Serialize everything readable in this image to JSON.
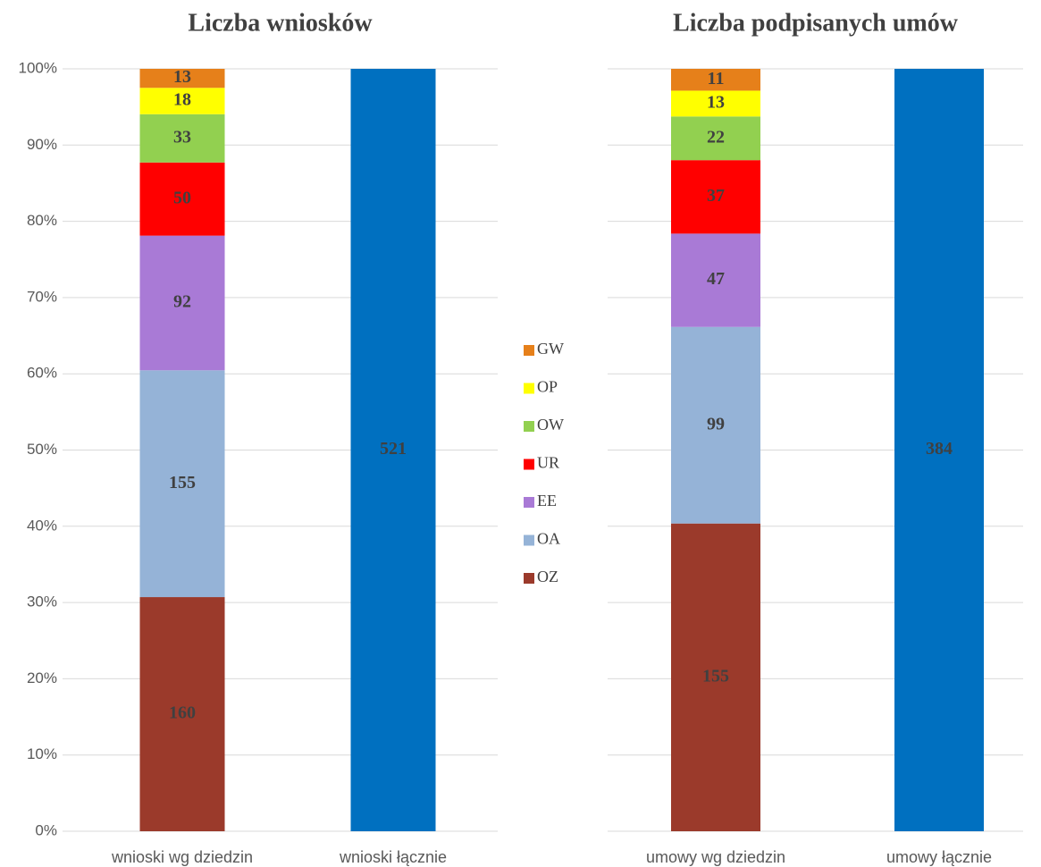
{
  "chart_data": [
    {
      "type": "bar",
      "stacking": "percent",
      "title": "Liczba wniosków",
      "categories": [
        "wnioski wg dziedzin",
        "wnioski łącznie"
      ],
      "series": [
        {
          "name": "OZ",
          "color": "#9b3a2b",
          "values": [
            160,
            null
          ]
        },
        {
          "name": "OA",
          "color": "#95b3d7",
          "values": [
            155,
            null
          ]
        },
        {
          "name": "EE",
          "color": "#a97ad6",
          "values": [
            92,
            null
          ]
        },
        {
          "name": "UR",
          "color": "#ff0000",
          "values": [
            50,
            null
          ]
        },
        {
          "name": "OW",
          "color": "#92d050",
          "values": [
            33,
            null
          ]
        },
        {
          "name": "OP",
          "color": "#ffff00",
          "values": [
            18,
            null
          ]
        },
        {
          "name": "GW",
          "color": "#e6801a",
          "values": [
            13,
            null
          ]
        },
        {
          "color": "#0070c0",
          "values": [
            null,
            521
          ]
        }
      ],
      "ylim": [
        0,
        100
      ],
      "yticks": [
        {
          "value": 0,
          "label": "0%"
        },
        {
          "value": 10,
          "label": "10%"
        },
        {
          "value": 20,
          "label": "20%"
        },
        {
          "value": 30,
          "label": "30%"
        },
        {
          "value": 40,
          "label": "40%"
        },
        {
          "value": 50,
          "label": "50%"
        },
        {
          "value": 60,
          "label": "60%"
        },
        {
          "value": 70,
          "label": "70%"
        },
        {
          "value": 80,
          "label": "80%"
        },
        {
          "value": 90,
          "label": "90%"
        },
        {
          "value": 100,
          "label": "100%"
        }
      ],
      "grid": true,
      "legend": "right"
    },
    {
      "type": "bar",
      "stacking": "percent",
      "title": "Liczba podpisanych umów",
      "categories": [
        "umowy wg dziedzin",
        "umowy łącznie"
      ],
      "series": [
        {
          "color": "#9b3a2b",
          "values": [
            155,
            null
          ]
        },
        {
          "color": "#95b3d7",
          "values": [
            99,
            null
          ]
        },
        {
          "color": "#a97ad6",
          "values": [
            47,
            null
          ]
        },
        {
          "color": "#ff0000",
          "values": [
            37,
            null
          ]
        },
        {
          "color": "#92d050",
          "values": [
            22,
            null
          ]
        },
        {
          "color": "#ffff00",
          "values": [
            13,
            null
          ]
        },
        {
          "color": "#e6801a",
          "values": [
            11,
            null
          ]
        },
        {
          "color": "#0070c0",
          "values": [
            null,
            384
          ]
        }
      ],
      "ylim": [
        0,
        100
      ],
      "yticks": [
        0,
        10,
        20,
        30,
        40,
        50,
        60,
        70,
        80,
        90,
        100
      ],
      "grid": true
    }
  ]
}
